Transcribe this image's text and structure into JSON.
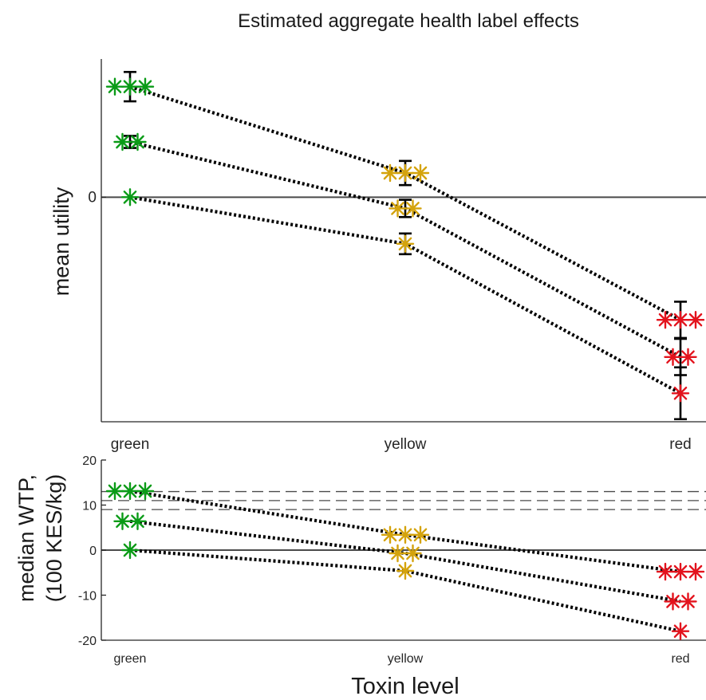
{
  "chart_data": [
    {
      "type": "line",
      "title": "Estimated aggregate health label effects",
      "xlabel": "",
      "ylabel": "mean utility",
      "categories": [
        "green",
        "yellow",
        "red"
      ],
      "yticks": [
        0
      ],
      "ylim": [
        -2.6,
        1.6
      ],
      "y_tick_labels_shown": "0 only",
      "reference_line": 0,
      "colors": {
        "green": "#0a9b17",
        "yellow": "#d4a30c",
        "red": "#e3131d"
      },
      "series": [
        {
          "markers": [
            3,
            3,
            3
          ],
          "values": [
            1.28,
            0.28,
            -1.42
          ],
          "errors": [
            0.17,
            0.14,
            0.21
          ]
        },
        {
          "markers": [
            2,
            2,
            2
          ],
          "values": [
            0.64,
            -0.13,
            -1.85
          ],
          "errors": [
            0.07,
            0.1,
            0.21
          ]
        },
        {
          "markers": [
            1,
            1,
            1
          ],
          "values": [
            0.0,
            -0.54,
            -2.27
          ],
          "errors": [
            0.0,
            0.12,
            0.3
          ]
        }
      ]
    },
    {
      "type": "line",
      "title": "",
      "xlabel": "Toxin level",
      "ylabel": "median WTP,",
      "ylabel_line2": "(100 KES/kg)",
      "categories": [
        "green",
        "yellow",
        "red"
      ],
      "ylim": [
        -20,
        20
      ],
      "yticks": [
        -20,
        -10,
        0,
        10,
        20
      ],
      "ytick_labels": [
        "-20",
        "-10",
        "0",
        "10",
        "20"
      ],
      "reference_line": 0,
      "dashed_lines": [
        13,
        11,
        9
      ],
      "series": [
        {
          "markers": [
            3,
            3,
            3
          ],
          "values": [
            13.1,
            3.4,
            -4.8
          ]
        },
        {
          "markers": [
            2,
            2,
            2
          ],
          "values": [
            6.4,
            -0.7,
            -11.4
          ]
        },
        {
          "markers": [
            1,
            1,
            1
          ],
          "values": [
            0.0,
            -4.6,
            -18.0
          ]
        }
      ]
    }
  ]
}
